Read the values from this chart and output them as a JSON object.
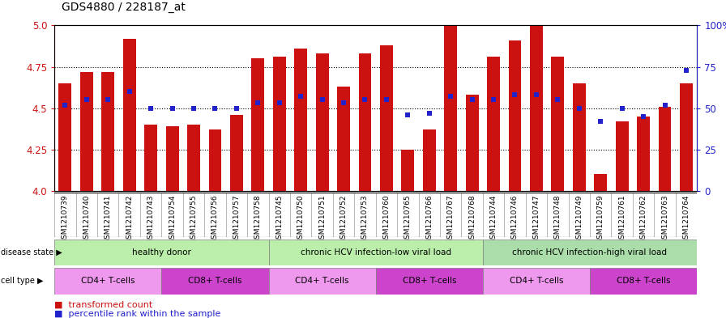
{
  "title": "GDS4880 / 228187_at",
  "samples": [
    "GSM1210739",
    "GSM1210740",
    "GSM1210741",
    "GSM1210742",
    "GSM1210743",
    "GSM1210754",
    "GSM1210755",
    "GSM1210756",
    "GSM1210757",
    "GSM1210758",
    "GSM1210745",
    "GSM1210750",
    "GSM1210751",
    "GSM1210752",
    "GSM1210753",
    "GSM1210760",
    "GSM1210765",
    "GSM1210766",
    "GSM1210767",
    "GSM1210768",
    "GSM1210744",
    "GSM1210746",
    "GSM1210747",
    "GSM1210748",
    "GSM1210749",
    "GSM1210759",
    "GSM1210761",
    "GSM1210762",
    "GSM1210763",
    "GSM1210764"
  ],
  "bar_values": [
    4.65,
    4.72,
    4.72,
    4.92,
    4.4,
    4.39,
    4.4,
    4.37,
    4.46,
    4.8,
    4.81,
    4.86,
    4.83,
    4.63,
    4.83,
    4.88,
    4.25,
    4.37,
    5.0,
    4.58,
    4.81,
    4.91,
    5.02,
    4.81,
    4.65,
    4.1,
    4.42,
    4.45,
    4.51,
    4.65
  ],
  "percentile_values": [
    52,
    55,
    55,
    60,
    50,
    50,
    50,
    50,
    50,
    53,
    53,
    57,
    55,
    53,
    55,
    55,
    46,
    47,
    57,
    55,
    55,
    58,
    58,
    55,
    50,
    42,
    50,
    45,
    52,
    73
  ],
  "ylim_left": [
    4.0,
    5.0
  ],
  "ylim_right": [
    0,
    100
  ],
  "yticks_left": [
    4.0,
    4.25,
    4.5,
    4.75,
    5.0
  ],
  "yticks_right": [
    0,
    25,
    50,
    75,
    100
  ],
  "bar_color": "#cc1111",
  "dot_color": "#2222cc",
  "bg_color": "#ffffff",
  "disease_groups": [
    {
      "label": "healthy donor",
      "start": 0,
      "end": 9,
      "color": "#bbeeaa"
    },
    {
      "label": "chronic HCV infection-low viral load",
      "start": 10,
      "end": 19,
      "color": "#bbeeaa"
    },
    {
      "label": "chronic HCV infection-high viral load",
      "start": 20,
      "end": 29,
      "color": "#aaddaa"
    }
  ],
  "cell_groups": [
    {
      "label": "CD4+ T-cells",
      "start": 0,
      "end": 4,
      "color": "#ee99ee"
    },
    {
      "label": "CD8+ T-cells",
      "start": 5,
      "end": 9,
      "color": "#cc44cc"
    },
    {
      "label": "CD4+ T-cells",
      "start": 10,
      "end": 14,
      "color": "#ee99ee"
    },
    {
      "label": "CD8+ T-cells",
      "start": 15,
      "end": 19,
      "color": "#cc44cc"
    },
    {
      "label": "CD4+ T-cells",
      "start": 20,
      "end": 24,
      "color": "#ee99ee"
    },
    {
      "label": "CD8+ T-cells",
      "start": 25,
      "end": 29,
      "color": "#cc44cc"
    }
  ],
  "grid_yticks": [
    4.25,
    4.5,
    4.75
  ],
  "left_tick_color": "#cc1111",
  "right_tick_color": "#2222cc",
  "left_spine_color": "#cc1111",
  "right_spine_color": "#2222cc"
}
